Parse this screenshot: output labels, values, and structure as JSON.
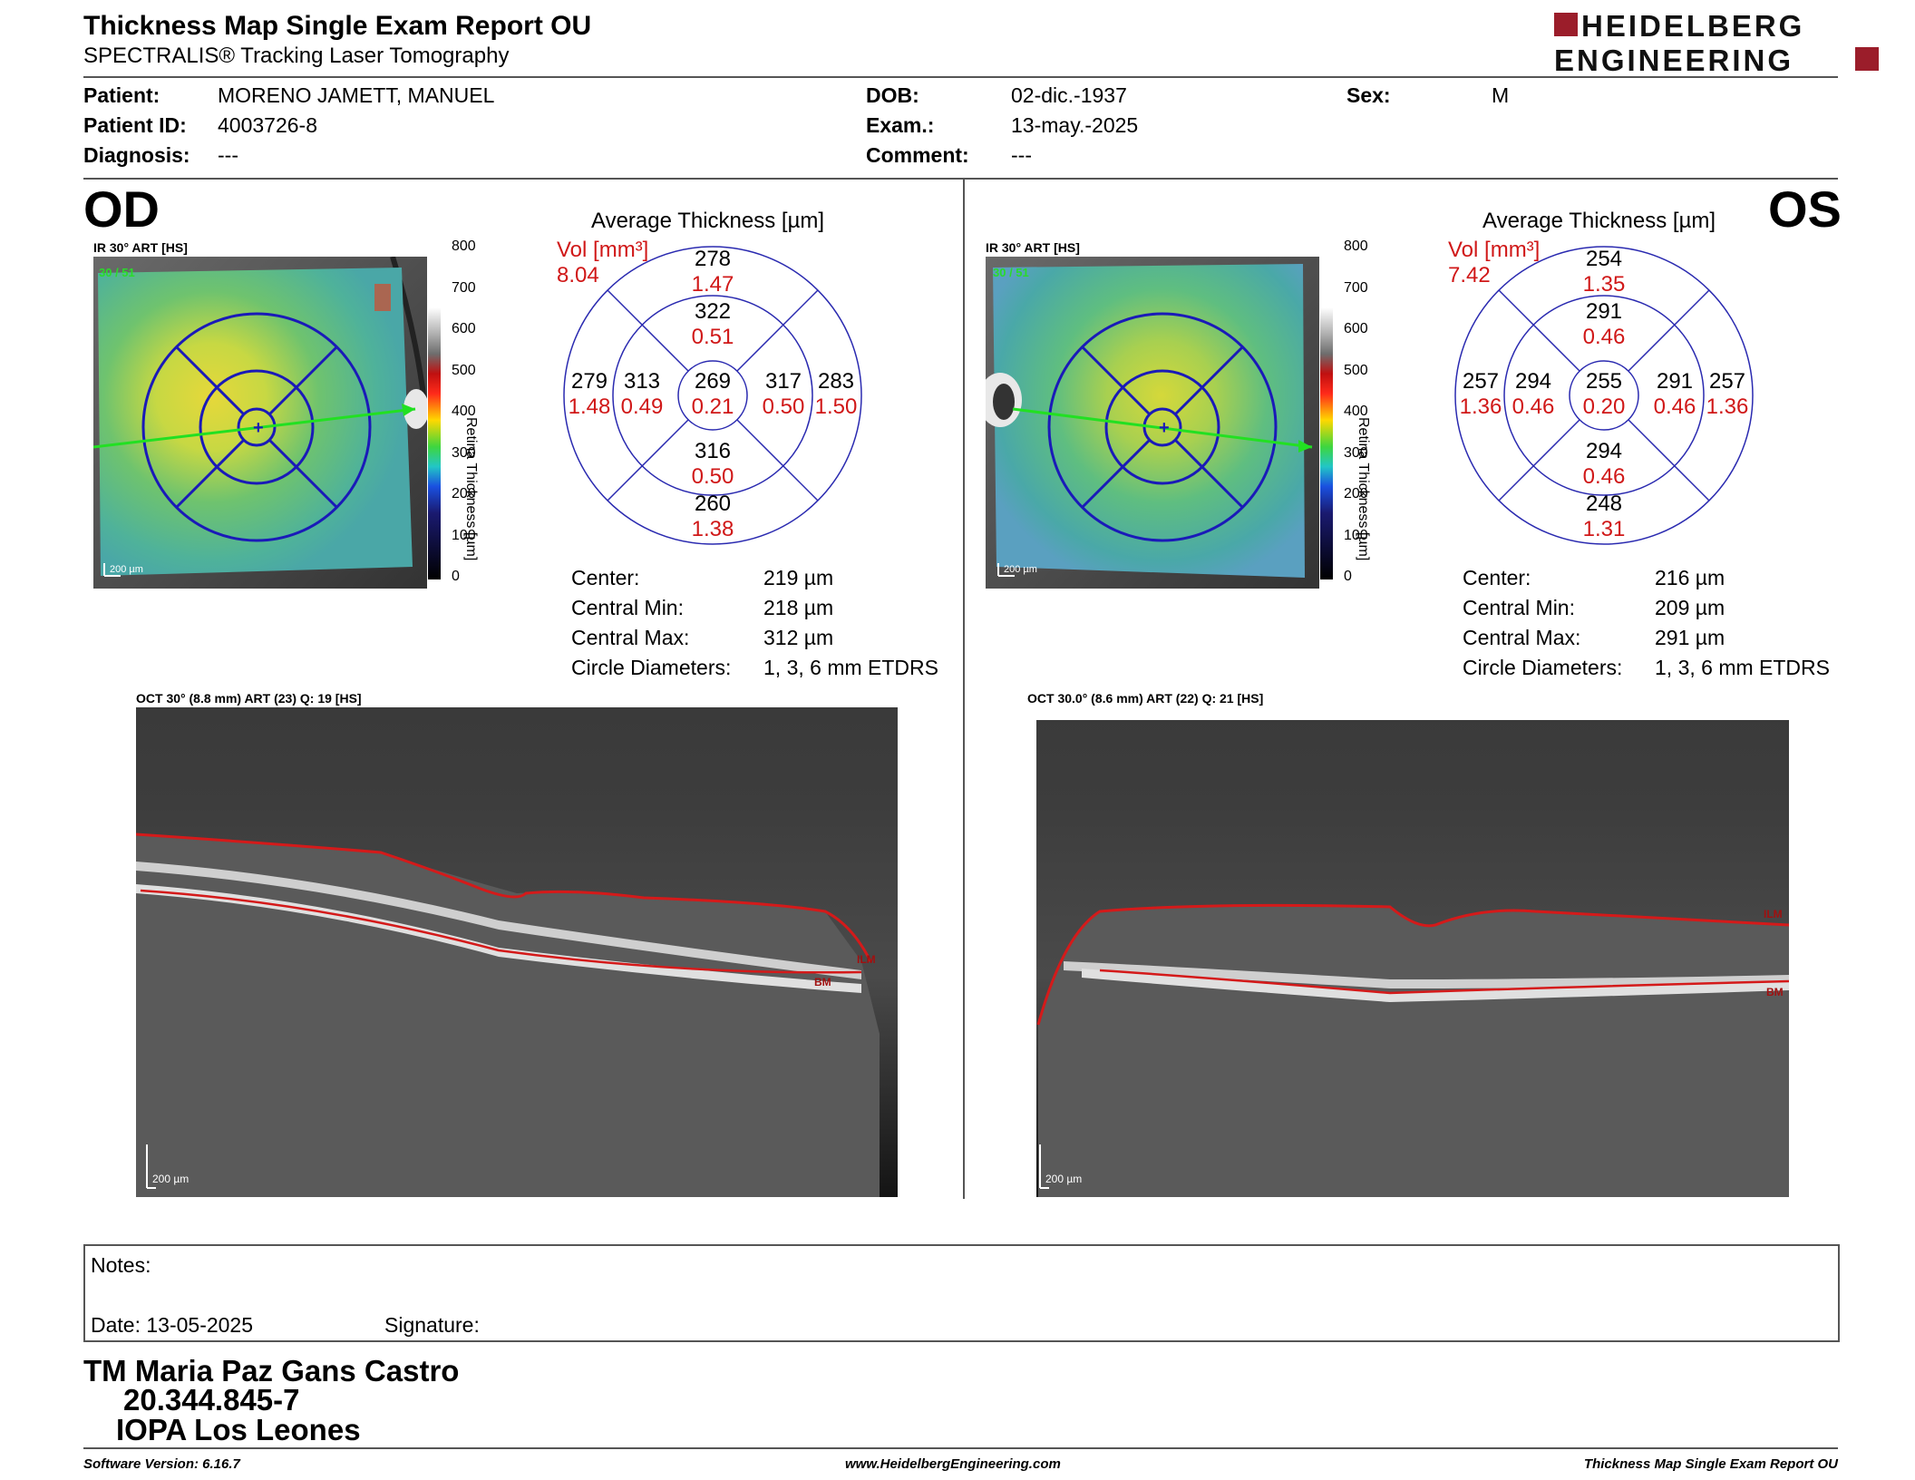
{
  "header": {
    "title": "Thickness Map Single Exam Report OU",
    "subtitle": "SPECTRALIS® Tracking Laser Tomography",
    "logo_line1": "HEIDELBERG",
    "logo_line2": "ENGINEERING",
    "brand_color": "#9b1d2a"
  },
  "patient": {
    "patient_label": "Patient:",
    "patient_value": "MORENO JAMETT, MANUEL",
    "id_label": "Patient ID:",
    "id_value": "4003726-8",
    "diag_label": "Diagnosis:",
    "diag_value": "---",
    "dob_label": "DOB:",
    "dob_value": "02-dic.-1937",
    "exam_label": "Exam.:",
    "exam_value": "13-may.-2025",
    "comment_label": "Comment:",
    "comment_value": "---",
    "sex_label": "Sex:",
    "sex_value": "M"
  },
  "colorbar": {
    "ticks": [
      "800",
      "700",
      "600",
      "500",
      "400",
      "300",
      "200",
      "100",
      "0"
    ],
    "label": "Retina Thickness [µm]"
  },
  "od": {
    "eye": "OD",
    "ir_label": "IR 30° ART [HS]",
    "ir_quality": "30 / 51",
    "ir_scale": "200 µm",
    "grid_title": "Average Thickness [µm]",
    "vol_label": "Vol [mm³]",
    "vol_total": "8.04",
    "sectors": {
      "outer_sup": {
        "t": "278",
        "v": "1.47"
      },
      "inner_sup": {
        "t": "322",
        "v": "0.51"
      },
      "outer_left": {
        "t": "279",
        "v": "1.48"
      },
      "inner_left": {
        "t": "313",
        "v": "0.49"
      },
      "center": {
        "t": "269",
        "v": "0.21"
      },
      "inner_right": {
        "t": "317",
        "v": "0.50"
      },
      "outer_right": {
        "t": "283",
        "v": "1.50"
      },
      "inner_inf": {
        "t": "316",
        "v": "0.50"
      },
      "outer_inf": {
        "t": "260",
        "v": "1.38"
      }
    },
    "stats": {
      "center_label": "Center:",
      "center_value": "219 µm",
      "min_label": "Central Min:",
      "min_value": "218 µm",
      "max_label": "Central Max:",
      "max_value": "312 µm",
      "diam_label": "Circle Diameters:",
      "diam_value": "1, 3, 6 mm ETDRS"
    },
    "oct_label": "OCT 30° (8.8 mm) ART (23) Q: 19 [HS]",
    "oct_scale": "200 µm",
    "ilm": "ILM",
    "bm": "BM"
  },
  "os": {
    "eye": "OS",
    "ir_label": "IR 30° ART [HS]",
    "ir_quality": "30 / 51",
    "ir_scale": "200 µm",
    "grid_title": "Average Thickness [µm]",
    "vol_label": "Vol [mm³]",
    "vol_total": "7.42",
    "sectors": {
      "outer_sup": {
        "t": "254",
        "v": "1.35"
      },
      "inner_sup": {
        "t": "291",
        "v": "0.46"
      },
      "outer_left": {
        "t": "257",
        "v": "1.36"
      },
      "inner_left": {
        "t": "294",
        "v": "0.46"
      },
      "center": {
        "t": "255",
        "v": "0.20"
      },
      "inner_right": {
        "t": "291",
        "v": "0.46"
      },
      "outer_right": {
        "t": "257",
        "v": "1.36"
      },
      "inner_inf": {
        "t": "294",
        "v": "0.46"
      },
      "outer_inf": {
        "t": "248",
        "v": "1.31"
      }
    },
    "stats": {
      "center_label": "Center:",
      "center_value": "216 µm",
      "min_label": "Central Min:",
      "min_value": "209 µm",
      "max_label": "Central Max:",
      "max_value": "291 µm",
      "diam_label": "Circle Diameters:",
      "diam_value": "1, 3, 6 mm ETDRS"
    },
    "oct_label": "OCT 30.0° (8.6 mm) ART (22) Q: 21 [HS]",
    "oct_scale": "200 µm",
    "ilm": "ILM",
    "bm": "BM"
  },
  "notes": {
    "notes_label": "Notes:",
    "date_label": "Date: 13-05-2025",
    "signature_label": "Signature:"
  },
  "stamp": {
    "line1": "TM Maria Paz Gans Castro",
    "line2": "20.344.845-7",
    "line3": "IOPA Los Leones"
  },
  "footer": {
    "software": "Software Version: 6.16.7",
    "website": "www.HeidelbergEngineering.com",
    "report": "Thickness Map Single Exam Report OU"
  }
}
